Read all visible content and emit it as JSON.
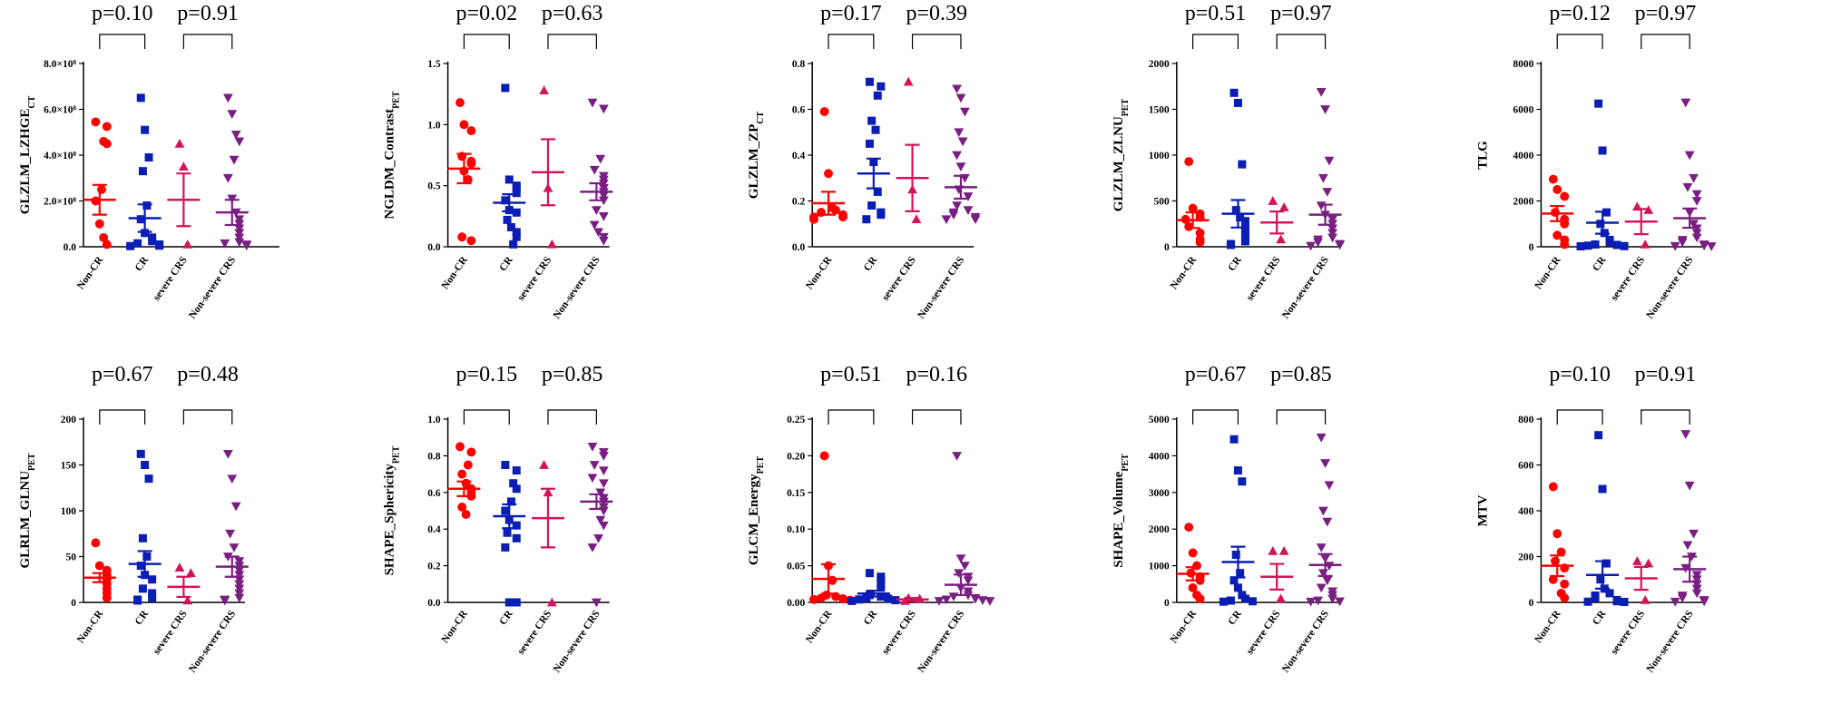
{
  "figure": {
    "panel_count": 10
  },
  "chart_data": [
    {
      "type": "scatter",
      "ylabel": "GLZLM_LZHGE",
      "ylabel_sub": "CT",
      "ylim": [
        0,
        800000000
      ],
      "yticks": [
        0,
        200000000,
        400000000,
        600000000,
        800000000
      ],
      "ytick_labels": [
        "0.0",
        "2.0×10⁸",
        "4.0×10⁸",
        "6.0×10⁸",
        "8.0×10⁸"
      ],
      "categories": [
        "Non-CR",
        "CR",
        "severe CRS",
        "Non-severe CRS"
      ],
      "p_values": [
        "p=0.10",
        "p=0.91"
      ],
      "series": [
        {
          "name": "Non-CR",
          "mean": 205000000,
          "sem": 65000000,
          "values": [
            545000000,
            525000000,
            460000000,
            450000000,
            250000000,
            200000000,
            100000000,
            40000000,
            10000000
          ]
        },
        {
          "name": "CR",
          "mean": 125000000,
          "sem": 60000000,
          "values": [
            650000000,
            510000000,
            390000000,
            330000000,
            180000000,
            120000000,
            60000000,
            40000000,
            25000000,
            15000000,
            10000000,
            5000000,
            3000000
          ]
        },
        {
          "name": "severe CRS",
          "mean": 205000000,
          "sem": 115000000,
          "values": [
            450000000,
            350000000,
            10000000
          ]
        },
        {
          "name": "Non-severe CRS",
          "mean": 150000000,
          "sem": 55000000,
          "values": [
            650000000,
            580000000,
            490000000,
            460000000,
            380000000,
            300000000,
            210000000,
            150000000,
            120000000,
            100000000,
            80000000,
            60000000,
            40000000,
            20000000,
            15000000,
            10000000,
            5000000
          ]
        }
      ]
    },
    {
      "type": "scatter",
      "ylabel": "NGLDM_Contrast",
      "ylabel_sub": "PET",
      "ylim": [
        0,
        1.5
      ],
      "yticks": [
        0,
        0.5,
        1.0,
        1.5
      ],
      "ytick_labels": [
        "0.0",
        "0.5",
        "1.0",
        "1.5"
      ],
      "categories": [
        "Non-CR",
        "CR",
        "severe CRS",
        "Non-severe CRS"
      ],
      "p_values": [
        "p=0.02",
        "p=0.63"
      ],
      "series": [
        {
          "name": "Non-CR",
          "mean": 0.64,
          "sem": 0.12,
          "values": [
            1.18,
            1.0,
            0.95,
            0.74,
            0.7,
            0.68,
            0.62,
            0.55,
            0.08,
            0.05
          ]
        },
        {
          "name": "CR",
          "mean": 0.36,
          "sem": 0.07,
          "values": [
            1.3,
            0.55,
            0.5,
            0.48,
            0.44,
            0.38,
            0.3,
            0.28,
            0.22,
            0.16,
            0.12,
            0.08,
            0.02
          ]
        },
        {
          "name": "severe CRS",
          "mean": 0.61,
          "sem": 0.27,
          "values": [
            1.28,
            0.48,
            0.02
          ]
        },
        {
          "name": "Non-severe CRS",
          "mean": 0.45,
          "sem": 0.07,
          "values": [
            1.18,
            1.13,
            0.72,
            0.63,
            0.58,
            0.55,
            0.52,
            0.48,
            0.45,
            0.42,
            0.38,
            0.3,
            0.25,
            0.18,
            0.12,
            0.08,
            0.05
          ]
        }
      ]
    },
    {
      "type": "scatter",
      "ylabel": "GLZLM_ZP",
      "ylabel_sub": "CT",
      "ylim": [
        0,
        0.8
      ],
      "yticks": [
        0,
        0.2,
        0.4,
        0.6,
        0.8
      ],
      "ytick_labels": [
        "0.0",
        "0.2",
        "0.4",
        "0.6",
        "0.8"
      ],
      "categories": [
        "Non-CR",
        "CR",
        "severe CRS",
        "Non-severe CRS"
      ],
      "p_values": [
        "p=0.17",
        "p=0.39"
      ],
      "series": [
        {
          "name": "Non-CR",
          "mean": 0.19,
          "sem": 0.05,
          "values": [
            0.59,
            0.32,
            0.17,
            0.16,
            0.15,
            0.14,
            0.13,
            0.13,
            0.12
          ]
        },
        {
          "name": "CR",
          "mean": 0.32,
          "sem": 0.065,
          "values": [
            0.72,
            0.7,
            0.66,
            0.55,
            0.51,
            0.45,
            0.37,
            0.24,
            0.18,
            0.15,
            0.14,
            0.12
          ]
        },
        {
          "name": "severe CRS",
          "mean": 0.3,
          "sem": 0.145,
          "values": [
            0.72,
            0.25,
            0.12
          ]
        },
        {
          "name": "Non-severe CRS",
          "mean": 0.26,
          "sem": 0.05,
          "values": [
            0.69,
            0.65,
            0.59,
            0.5,
            0.46,
            0.4,
            0.35,
            0.3,
            0.25,
            0.22,
            0.18,
            0.16,
            0.15,
            0.14,
            0.13,
            0.12,
            0.12
          ]
        }
      ]
    },
    {
      "type": "scatter",
      "ylabel": "GLZLM_ZLNU",
      "ylabel_sub": "PET",
      "ylim": [
        0,
        2000
      ],
      "yticks": [
        0,
        500,
        1000,
        1500,
        2000
      ],
      "ytick_labels": [
        "0",
        "500",
        "1000",
        "1500",
        "2000"
      ],
      "categories": [
        "Non-CR",
        "CR",
        "severe CRS",
        "Non-severe CRS"
      ],
      "p_values": [
        "p=0.51",
        "p=0.97"
      ],
      "series": [
        {
          "name": "Non-CR",
          "mean": 290,
          "sem": 85,
          "values": [
            930,
            420,
            360,
            320,
            300,
            220,
            150,
            80,
            50
          ]
        },
        {
          "name": "CR",
          "mean": 360,
          "sem": 150,
          "values": [
            1680,
            1570,
            900,
            400,
            320,
            280,
            220,
            150,
            100,
            60,
            30,
            20
          ]
        },
        {
          "name": "severe CRS",
          "mean": 265,
          "sem": 120,
          "values": [
            500,
            430,
            80
          ]
        },
        {
          "name": "Non-severe CRS",
          "mean": 350,
          "sem": 110,
          "values": [
            1690,
            1500,
            940,
            750,
            600,
            450,
            350,
            300,
            250,
            200,
            150,
            100,
            80,
            50,
            30,
            20,
            10
          ]
        }
      ]
    },
    {
      "type": "scatter",
      "ylabel": "TLG",
      "ylabel_sub": "",
      "ylim": [
        0,
        8000
      ],
      "yticks": [
        0,
        2000,
        4000,
        6000,
        8000
      ],
      "ytick_labels": [
        "0",
        "2000",
        "4000",
        "6000",
        "8000"
      ],
      "categories": [
        "Non-CR",
        "CR",
        "severe CRS",
        "Non-severe CRS"
      ],
      "p_values": [
        "p=0.12",
        "p=0.97"
      ],
      "series": [
        {
          "name": "Non-CR",
          "mean": 1450,
          "sem": 330,
          "values": [
            2950,
            2500,
            2200,
            1500,
            1200,
            1000,
            500,
            300,
            100
          ]
        },
        {
          "name": "CR",
          "mean": 1050,
          "sem": 480,
          "values": [
            6250,
            4200,
            1500,
            1000,
            600,
            300,
            200,
            100,
            80,
            50,
            30,
            20
          ]
        },
        {
          "name": "severe CRS",
          "mean": 1100,
          "sem": 550,
          "values": [
            1750,
            1600,
            100
          ]
        },
        {
          "name": "Non-severe CRS",
          "mean": 1250,
          "sem": 420,
          "values": [
            6300,
            4000,
            3000,
            2600,
            2300,
            2000,
            1500,
            1000,
            800,
            600,
            400,
            300,
            200,
            100,
            50,
            30,
            20
          ]
        }
      ]
    },
    {
      "type": "scatter",
      "ylabel": "GLRLM_GLNU",
      "ylabel_sub": "PET",
      "ylim": [
        0,
        200
      ],
      "yticks": [
        0,
        50,
        100,
        150,
        200
      ],
      "ytick_labels": [
        "0",
        "50",
        "100",
        "150",
        "200"
      ],
      "categories": [
        "Non-CR",
        "CR",
        "severe CRS",
        "Non-severe CRS"
      ],
      "p_values": [
        "p=0.67",
        "p=0.48"
      ],
      "series": [
        {
          "name": "Non-CR",
          "mean": 27,
          "sem": 5,
          "values": [
            65,
            40,
            35,
            30,
            25,
            20,
            15,
            10,
            5
          ]
        },
        {
          "name": "CR",
          "mean": 42,
          "sem": 14,
          "values": [
            162,
            150,
            135,
            70,
            50,
            40,
            30,
            25,
            15,
            10,
            5,
            3,
            2
          ]
        },
        {
          "name": "severe CRS",
          "mean": 17,
          "sem": 11,
          "values": [
            38,
            32,
            2
          ]
        },
        {
          "name": "Non-severe CRS",
          "mean": 39,
          "sem": 11,
          "values": [
            162,
            135,
            105,
            75,
            60,
            50,
            45,
            40,
            35,
            30,
            25,
            20,
            15,
            10,
            5,
            3,
            2
          ]
        }
      ]
    },
    {
      "type": "scatter",
      "ylabel": "SHAPE_Sphericity",
      "ylabel_sub": "PET",
      "ylim": [
        0,
        1.0
      ],
      "yticks": [
        0,
        0.2,
        0.4,
        0.6,
        0.8,
        1.0
      ],
      "ytick_labels": [
        "0.0",
        "0.2",
        "0.4",
        "0.6",
        "0.8",
        "1.0"
      ],
      "categories": [
        "Non-CR",
        "CR",
        "severe CRS",
        "Non-severe CRS"
      ],
      "p_values": [
        "p=0.15",
        "p=0.85"
      ],
      "series": [
        {
          "name": "Non-CR",
          "mean": 0.62,
          "sem": 0.04,
          "values": [
            0.85,
            0.82,
            0.75,
            0.7,
            0.65,
            0.62,
            0.6,
            0.58,
            0.52,
            0.48
          ]
        },
        {
          "name": "CR",
          "mean": 0.47,
          "sem": 0.065,
          "values": [
            0.75,
            0.72,
            0.65,
            0.62,
            0.55,
            0.5,
            0.45,
            0.42,
            0.38,
            0.35,
            0.3,
            0.0,
            0.0
          ]
        },
        {
          "name": "severe CRS",
          "mean": 0.46,
          "sem": 0.16,
          "values": [
            0.75,
            0.6,
            0.0
          ]
        },
        {
          "name": "Non-severe CRS",
          "mean": 0.55,
          "sem": 0.04,
          "values": [
            0.85,
            0.82,
            0.8,
            0.75,
            0.72,
            0.68,
            0.65,
            0.6,
            0.57,
            0.55,
            0.52,
            0.5,
            0.45,
            0.42,
            0.35,
            0.3,
            0.0
          ]
        }
      ]
    },
    {
      "type": "scatter",
      "ylabel": "GLCM_Energy",
      "ylabel_sub": "PET",
      "ylim": [
        0,
        0.25
      ],
      "yticks": [
        0,
        0.05,
        0.1,
        0.15,
        0.2,
        0.25
      ],
      "ytick_labels": [
        "0.00",
        "0.05",
        "0.10",
        "0.15",
        "0.20",
        "0.25"
      ],
      "categories": [
        "Non-CR",
        "CR",
        "severe CRS",
        "Non-severe CRS"
      ],
      "p_values": [
        "p=0.51",
        "p=0.16"
      ],
      "series": [
        {
          "name": "Non-CR",
          "mean": 0.032,
          "sem": 0.02,
          "values": [
            0.2,
            0.05,
            0.03,
            0.01,
            0.008,
            0.006,
            0.005,
            0.004,
            0.003
          ]
        },
        {
          "name": "CR",
          "mean": 0.012,
          "sem": 0.004,
          "values": [
            0.04,
            0.035,
            0.03,
            0.025,
            0.02,
            0.01,
            0.008,
            0.006,
            0.005,
            0.004,
            0.003,
            0.002
          ]
        },
        {
          "name": "severe CRS",
          "mean": 0.004,
          "sem": 0.002,
          "values": [
            0.006,
            0.005,
            0.002
          ]
        },
        {
          "name": "Non-severe CRS",
          "mean": 0.024,
          "sem": 0.014,
          "values": [
            0.2,
            0.06,
            0.05,
            0.04,
            0.035,
            0.03,
            0.02,
            0.015,
            0.01,
            0.008,
            0.006,
            0.005,
            0.004,
            0.003,
            0.002,
            0.002
          ]
        }
      ]
    },
    {
      "type": "scatter",
      "ylabel": "SHAPE_Volume",
      "ylabel_sub": "PET",
      "ylim": [
        0,
        5000
      ],
      "yticks": [
        0,
        1000,
        2000,
        3000,
        4000,
        5000
      ],
      "ytick_labels": [
        "0",
        "1000",
        "2000",
        "3000",
        "4000",
        "5000"
      ],
      "categories": [
        "Non-CR",
        "CR",
        "severe CRS",
        "Non-severe CRS"
      ],
      "p_values": [
        "p=0.67",
        "p=0.85"
      ],
      "series": [
        {
          "name": "Non-CR",
          "mean": 780,
          "sem": 180,
          "values": [
            2050,
            1350,
            1000,
            800,
            700,
            600,
            400,
            200,
            100
          ]
        },
        {
          "name": "CR",
          "mean": 1100,
          "sem": 420,
          "values": [
            4450,
            3600,
            3300,
            1300,
            800,
            600,
            400,
            200,
            100,
            50,
            30,
            20
          ]
        },
        {
          "name": "severe CRS",
          "mean": 700,
          "sem": 350,
          "values": [
            1400,
            1400,
            100
          ]
        },
        {
          "name": "Non-severe CRS",
          "mean": 1020,
          "sem": 300,
          "values": [
            4500,
            3800,
            3200,
            2500,
            2200,
            1500,
            1200,
            1000,
            800,
            600,
            400,
            300,
            200,
            100,
            50,
            30,
            20
          ]
        }
      ]
    },
    {
      "type": "scatter",
      "ylabel": "MTV",
      "ylabel_sub": "",
      "ylim": [
        0,
        800
      ],
      "yticks": [
        0,
        200,
        400,
        600,
        800
      ],
      "ytick_labels": [
        "0",
        "200",
        "400",
        "600",
        "800"
      ],
      "categories": [
        "Non-CR",
        "CR",
        "severe CRS",
        "Non-severe CRS"
      ],
      "p_values": [
        "p=0.10",
        "p=0.91"
      ],
      "series": [
        {
          "name": "Non-CR",
          "mean": 160,
          "sem": 45,
          "values": [
            505,
            300,
            220,
            180,
            150,
            100,
            80,
            40,
            20
          ]
        },
        {
          "name": "CR",
          "mean": 120,
          "sem": 60,
          "values": [
            730,
            495,
            170,
            100,
            60,
            40,
            30,
            20,
            10,
            5,
            3,
            2
          ]
        },
        {
          "name": "severe CRS",
          "mean": 105,
          "sem": 50,
          "values": [
            180,
            170,
            10
          ]
        },
        {
          "name": "Non-severe CRS",
          "mean": 145,
          "sem": 55,
          "values": [
            735,
            510,
            300,
            250,
            200,
            150,
            120,
            100,
            80,
            60,
            40,
            30,
            20,
            10,
            5,
            3
          ]
        }
      ]
    }
  ],
  "styles": {
    "group_colors": [
      "#ff0000",
      "#0a1eb4",
      "#d4145a",
      "#7a1f82"
    ],
    "group_markers": [
      "circle",
      "square",
      "triangle-up",
      "triangle-down"
    ],
    "marker_size": 9,
    "axis_color": "#000000"
  }
}
